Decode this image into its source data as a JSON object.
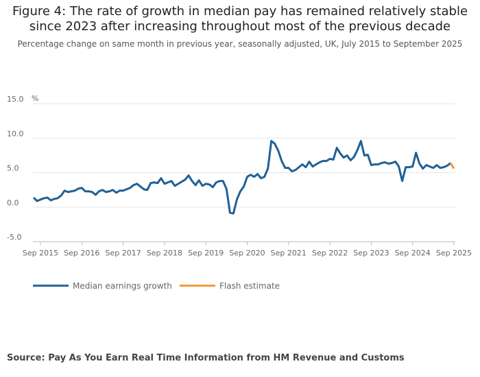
{
  "title_line1": "Figure 4: The rate of growth in median pay has remained relatively stable",
  "title_line2": "since 2023 after increasing throughout most of the previous decade",
  "subtitle": "Percentage change on same month in previous year, seasonally adjusted, UK, July 2015 to September 2025",
  "source": "Source: Pay As You Earn Real Time Information from HM Revenue and Customs",
  "colors": {
    "median": "#206095",
    "flash": "#f39431",
    "grid": "#e6e6e6"
  },
  "chart_data": {
    "type": "line",
    "ylabel": "%",
    "ylim": [
      -5,
      15
    ],
    "yticks": [
      "15.0",
      "10.0",
      "5.0",
      "0.0",
      "-5.0"
    ],
    "yticks_values": [
      15,
      10,
      5,
      0,
      -5
    ],
    "xticks": [
      "Sep 2015",
      "Sep 2016",
      "Sep 2017",
      "Sep 2018",
      "Sep 2019",
      "Sep 2020",
      "Sep 2021",
      "Sep 2022",
      "Sep 2023",
      "Sep 2024",
      "Sep 2025"
    ],
    "x_start": "Jul 2015",
    "x_end": "Sep 2025",
    "series": [
      {
        "name": "Median earnings growth",
        "values": [
          1.4,
          0.9,
          1.1,
          1.3,
          1.4,
          1.0,
          1.2,
          1.3,
          1.7,
          2.4,
          2.2,
          2.3,
          2.4,
          2.7,
          2.8,
          2.3,
          2.3,
          2.2,
          1.8,
          2.3,
          2.5,
          2.2,
          2.3,
          2.5,
          2.1,
          2.4,
          2.4,
          2.6,
          2.8,
          3.2,
          3.4,
          3.0,
          2.6,
          2.5,
          3.5,
          3.6,
          3.5,
          4.2,
          3.4,
          3.6,
          3.8,
          3.1,
          3.4,
          3.7,
          4.0,
          4.6,
          3.8,
          3.2,
          3.9,
          3.1,
          3.4,
          3.3,
          2.9,
          3.6,
          3.8,
          3.8,
          2.6,
          -0.8,
          -0.9,
          1.1,
          2.3,
          3.0,
          4.4,
          4.7,
          4.4,
          4.8,
          4.2,
          4.4,
          5.6,
          9.6,
          9.2,
          8.2,
          6.7,
          5.7,
          5.7,
          5.2,
          5.4,
          5.8,
          6.2,
          5.8,
          6.6,
          5.9,
          6.2,
          6.5,
          6.7,
          6.7,
          7.0,
          6.9,
          8.6,
          7.8,
          7.2,
          7.5,
          6.8,
          7.3,
          8.3,
          9.6,
          7.5,
          7.6,
          6.1,
          6.2,
          6.2,
          6.4,
          6.5,
          6.3,
          6.4,
          6.6,
          5.9,
          3.8,
          5.8,
          5.8,
          5.9,
          7.9,
          6.3,
          5.6,
          6.1,
          5.9,
          5.7,
          6.1,
          5.7,
          5.8,
          6.0,
          6.4
        ],
        "color": "#206095"
      },
      {
        "name": "Flash estimate",
        "values": [
          6.4,
          5.6
        ],
        "x_from": "Aug 2025",
        "color": "#f39431"
      }
    ],
    "legend": "bottom-left",
    "grid": true
  }
}
